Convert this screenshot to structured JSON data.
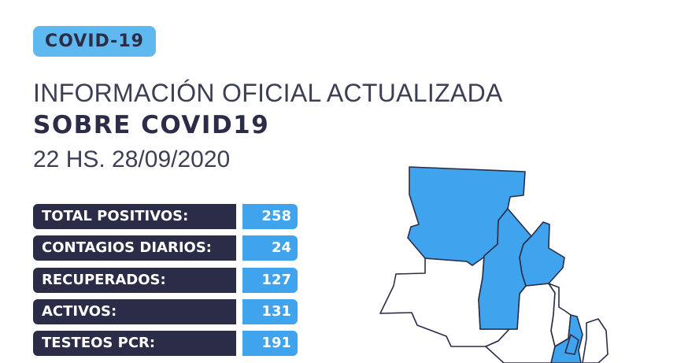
{
  "badge": "COVID-19",
  "title_line1": "INFORMACIÓN OFICIAL ACTUALIZADA",
  "title_line2": "SOBRE COVID19",
  "timestamp": "22 HS. 28/09/2020",
  "stats": [
    {
      "label": "TOTAL POSITIVOS:",
      "value": "258"
    },
    {
      "label": "CONTAGIOS DIARIOS:",
      "value": "24"
    },
    {
      "label": "RECUPERADOS:",
      "value": "127"
    },
    {
      "label": "ACTIVOS:",
      "value": "131"
    },
    {
      "label": "TESTEOS PCR:",
      "value": "191"
    }
  ],
  "colors": {
    "accent": "#3fa3ee",
    "dark": "#2b2d48",
    "badge": "#5fb9ef"
  }
}
